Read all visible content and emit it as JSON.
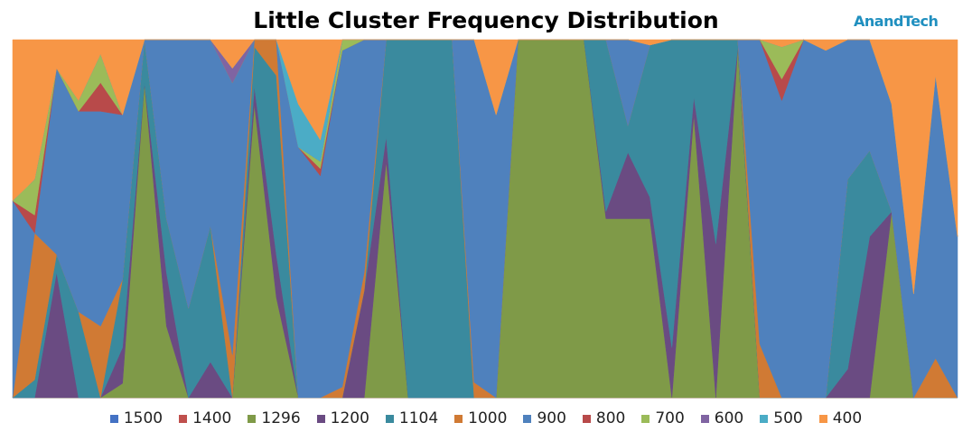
{
  "header": {
    "brand": "AnandTech"
  },
  "chart_data": {
    "type": "area",
    "stacked": "100%",
    "title": "Little Cluster Frequency Distribution",
    "xlabel": "",
    "ylabel": "",
    "ylim": [
      0,
      100
    ],
    "grid": false,
    "legend_position": "bottom",
    "x_count": 44,
    "series": [
      {
        "name": "1500",
        "color": "#4472C4",
        "values": [
          0,
          0,
          0,
          0,
          0,
          0,
          0,
          0,
          0,
          0,
          0,
          0,
          0,
          0,
          0,
          0,
          0,
          0,
          0,
          0,
          0,
          0,
          0,
          0,
          0,
          0,
          0,
          0,
          0,
          0,
          0,
          0,
          0,
          0,
          0,
          0,
          0,
          0,
          0,
          0,
          0,
          0,
          0,
          0
        ]
      },
      {
        "name": "1400",
        "color": "#C0504D",
        "values": [
          0,
          0,
          0,
          0,
          0,
          0,
          0,
          0,
          0,
          0,
          0,
          0,
          0,
          0,
          0,
          0,
          0,
          0,
          0,
          0,
          0,
          0,
          0,
          0,
          0,
          0,
          0,
          0,
          0,
          0,
          0,
          0,
          0,
          0,
          0,
          0,
          0,
          0,
          0,
          0,
          0,
          0,
          0,
          0
        ]
      },
      {
        "name": "1296",
        "color": "#7F9A48",
        "values": [
          0,
          0,
          0,
          0,
          0,
          4,
          88,
          20,
          0,
          0,
          0,
          82,
          28,
          0,
          0,
          0,
          0,
          66,
          0,
          0,
          0,
          0,
          0,
          100,
          100,
          100,
          100,
          100,
          100,
          100,
          0,
          79,
          0,
          98,
          0,
          0,
          0,
          0,
          0,
          0,
          52,
          0,
          0,
          0
        ]
      },
      {
        "name": "1200",
        "color": "#6A4B82",
        "values": [
          0,
          0,
          35,
          0,
          0,
          10,
          0,
          15,
          0,
          10,
          0,
          5,
          12,
          0,
          0,
          0,
          30,
          7,
          0,
          0,
          0,
          0,
          0,
          0,
          0,
          0,
          0,
          4,
          37,
          12,
          14,
          5,
          43,
          0,
          0,
          0,
          0,
          0,
          8,
          45,
          0,
          0,
          0,
          0
        ]
      },
      {
        "name": "1104",
        "color": "#3A8A9E",
        "values": [
          0,
          5,
          5,
          24,
          0,
          19,
          12,
          15,
          25,
          38,
          0,
          11,
          50,
          0,
          0,
          0,
          0,
          27,
          100,
          100,
          100,
          0,
          0,
          0,
          0,
          0,
          0,
          96,
          15,
          85,
          86,
          16,
          57,
          2,
          0,
          0,
          0,
          0,
          53,
          24,
          0,
          0,
          0,
          0
        ]
      },
      {
        "name": "1000",
        "color": "#D07A34",
        "values": [
          0,
          41,
          0,
          0,
          20,
          0,
          0,
          0,
          0,
          0,
          12,
          2,
          10,
          0,
          0,
          3,
          5,
          0,
          0,
          0,
          0,
          3,
          0,
          0,
          0,
          0,
          0,
          0,
          0,
          0,
          0,
          0,
          0,
          0,
          15,
          0,
          0,
          0,
          0,
          0,
          0,
          0,
          11,
          0
        ]
      },
      {
        "name": "900",
        "color": "#4F81BD",
        "values": [
          55,
          0,
          52,
          56,
          60,
          46,
          0,
          50,
          75,
          52,
          76,
          0,
          0,
          70,
          62,
          94,
          65,
          0,
          0,
          0,
          0,
          67,
          79,
          0,
          0,
          0,
          0,
          0,
          48,
          0,
          0,
          0,
          0,
          0,
          85,
          83,
          100,
          97,
          39,
          31,
          30,
          29,
          79,
          45
        ]
      },
      {
        "name": "800",
        "color": "#B84A4A",
        "values": [
          0,
          5,
          0,
          0,
          8,
          0,
          0,
          0,
          0,
          0,
          0,
          0,
          0,
          0,
          2,
          0,
          0,
          0,
          0,
          0,
          0,
          0,
          0,
          0,
          0,
          0,
          0,
          0,
          0,
          0,
          0,
          0,
          0,
          0,
          0,
          6,
          0,
          0,
          0,
          0,
          0,
          0,
          0,
          0
        ]
      },
      {
        "name": "700",
        "color": "#9BBB59",
        "values": [
          0,
          10,
          0,
          3,
          8,
          0,
          0,
          0,
          0,
          0,
          0,
          0,
          0,
          0,
          2,
          3,
          0,
          0,
          0,
          0,
          0,
          0,
          0,
          0,
          0,
          0,
          0,
          0,
          0,
          0,
          0,
          0,
          0,
          0,
          0,
          9,
          0,
          0,
          0,
          0,
          0,
          0,
          0,
          0
        ]
      },
      {
        "name": "600",
        "color": "#8064A2",
        "values": [
          0,
          0,
          0,
          0,
          0,
          0,
          0,
          0,
          0,
          0,
          4,
          0,
          0,
          0,
          0,
          0,
          0,
          0,
          0,
          0,
          0,
          0,
          0,
          0,
          0,
          0,
          0,
          0,
          0,
          0,
          0,
          0,
          0,
          0,
          0,
          0,
          0,
          0,
          0,
          0,
          0,
          0,
          0,
          0
        ]
      },
      {
        "name": "500",
        "color": "#4BACC6",
        "values": [
          0,
          0,
          0,
          0,
          0,
          0,
          0,
          0,
          0,
          0,
          0,
          0,
          0,
          12,
          6,
          0,
          0,
          0,
          0,
          0,
          0,
          0,
          0,
          0,
          0,
          0,
          0,
          0,
          0,
          0,
          0,
          0,
          0,
          0,
          0,
          0,
          0,
          0,
          0,
          0,
          0,
          0,
          0,
          0
        ]
      },
      {
        "name": "400",
        "color": "#F79646",
        "values": [
          45,
          39,
          8,
          17,
          4,
          21,
          0,
          0,
          0,
          0,
          8,
          0,
          0,
          18,
          28,
          0,
          0,
          0,
          0,
          0,
          0,
          0,
          21,
          0,
          0,
          0,
          0,
          0,
          0,
          3,
          0,
          0,
          0,
          0,
          0,
          2,
          0,
          3,
          0,
          0,
          18,
          71,
          10,
          55
        ]
      }
    ]
  }
}
